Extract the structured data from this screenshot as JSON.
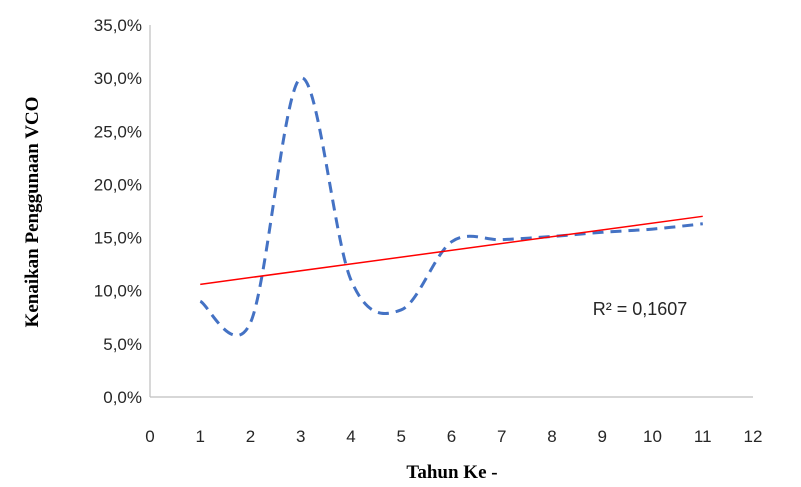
{
  "chart_data": {
    "type": "line",
    "xlabel": "Tahun Ke -",
    "ylabel": "Kenaikan Penggunaan VCO",
    "xlim": [
      0,
      12
    ],
    "ylim": [
      0,
      35
    ],
    "x_ticks": [
      "0",
      "1",
      "2",
      "3",
      "4",
      "5",
      "6",
      "7",
      "8",
      "9",
      "10",
      "11",
      "12"
    ],
    "y_ticks": [
      "0,0%",
      "5,0%",
      "10,0%",
      "15,0%",
      "20,0%",
      "25,0%",
      "30,0%",
      "35,0%"
    ],
    "grid": false,
    "series": [
      {
        "line_style": "dashed",
        "color": "#4472C4",
        "x": [
          1,
          2,
          3,
          4,
          5,
          6,
          7,
          8,
          9,
          10,
          11
        ],
        "y": [
          9.0,
          7.0,
          30.0,
          11.0,
          8.2,
          14.6,
          14.8,
          15.1,
          15.5,
          15.8,
          16.3
        ]
      }
    ],
    "trendline": {
      "type": "linear",
      "color": "#FF0000",
      "x": [
        1,
        11
      ],
      "y": [
        10.6,
        17.0
      ],
      "annotation": "R² = 0,1607"
    }
  }
}
